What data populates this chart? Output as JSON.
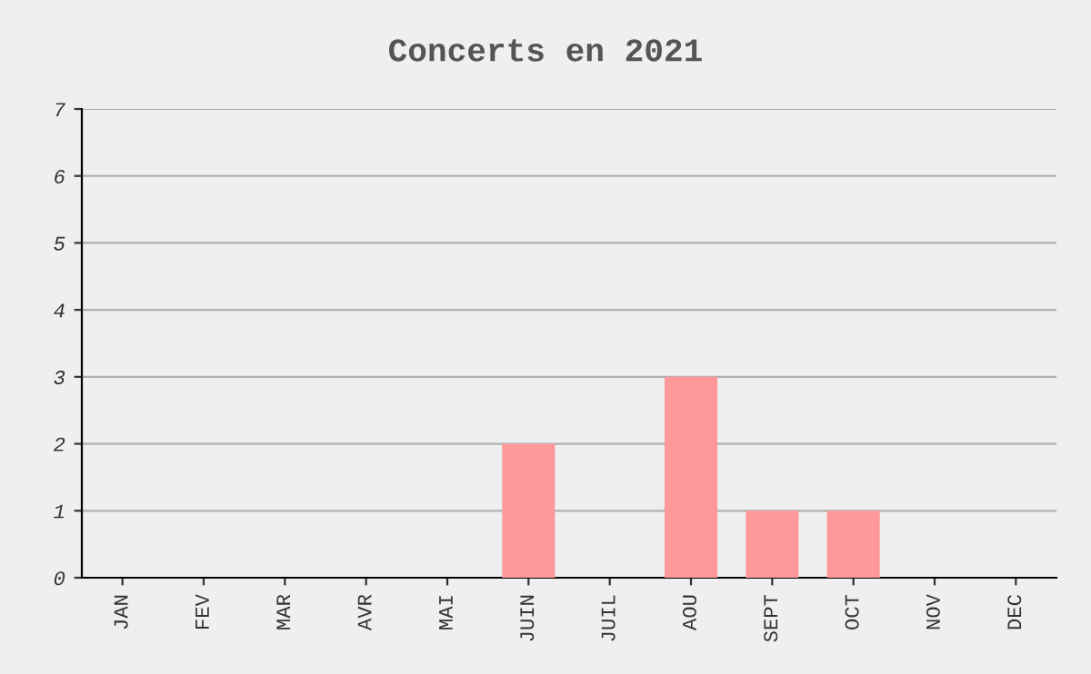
{
  "chart_data": {
    "type": "bar",
    "title": "Concerts en 2021",
    "categories": [
      "JAN",
      "FEV",
      "MAR",
      "AVR",
      "MAI",
      "JUIN",
      "JUIL",
      "AOU",
      "SEPT",
      "OCT",
      "NOV",
      "DEC"
    ],
    "values": [
      0,
      0,
      0,
      0,
      0,
      2,
      0,
      3,
      1,
      1,
      0,
      0
    ],
    "color": "#ff9999",
    "ylim": [
      0,
      7
    ],
    "yticks": [
      0,
      1,
      2,
      3,
      4,
      5,
      6,
      7
    ],
    "grid": "y",
    "legend": false
  }
}
